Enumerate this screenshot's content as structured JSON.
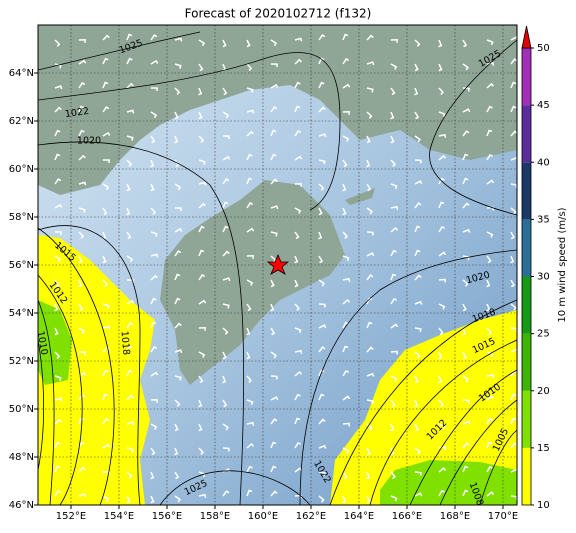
{
  "title": "Forecast of 2020102712 (f132)",
  "lat_labels": [
    "64°N",
    "62°N",
    "60°N",
    "58°N",
    "56°N",
    "54°N",
    "52°N",
    "50°N",
    "48°N",
    "46°N"
  ],
  "lon_labels": [
    "152°E",
    "154°E",
    "156°E",
    "158°E",
    "160°E",
    "162°E",
    "164°E",
    "166°E",
    "168°E",
    "170°E"
  ],
  "colorbar": {
    "label": "10 m wind speed (m/s)",
    "ticks": [
      10,
      15,
      20,
      25,
      30,
      35,
      40,
      45,
      50
    ],
    "colors": [
      "#ffff00",
      "#80e000",
      "#3cb400",
      "#169a16",
      "#2b6f98",
      "#1b3868",
      "#5b2c9c",
      "#a32eb8"
    ],
    "extend_color": "#e00000"
  },
  "contour_labels": [
    "1025",
    "1022",
    "1020",
    "1025",
    "1015",
    "1012",
    "1010",
    "1018",
    "1020",
    "1018",
    "1015",
    "1010",
    "1012",
    "1005",
    "1008",
    "1022",
    "1025"
  ]
}
